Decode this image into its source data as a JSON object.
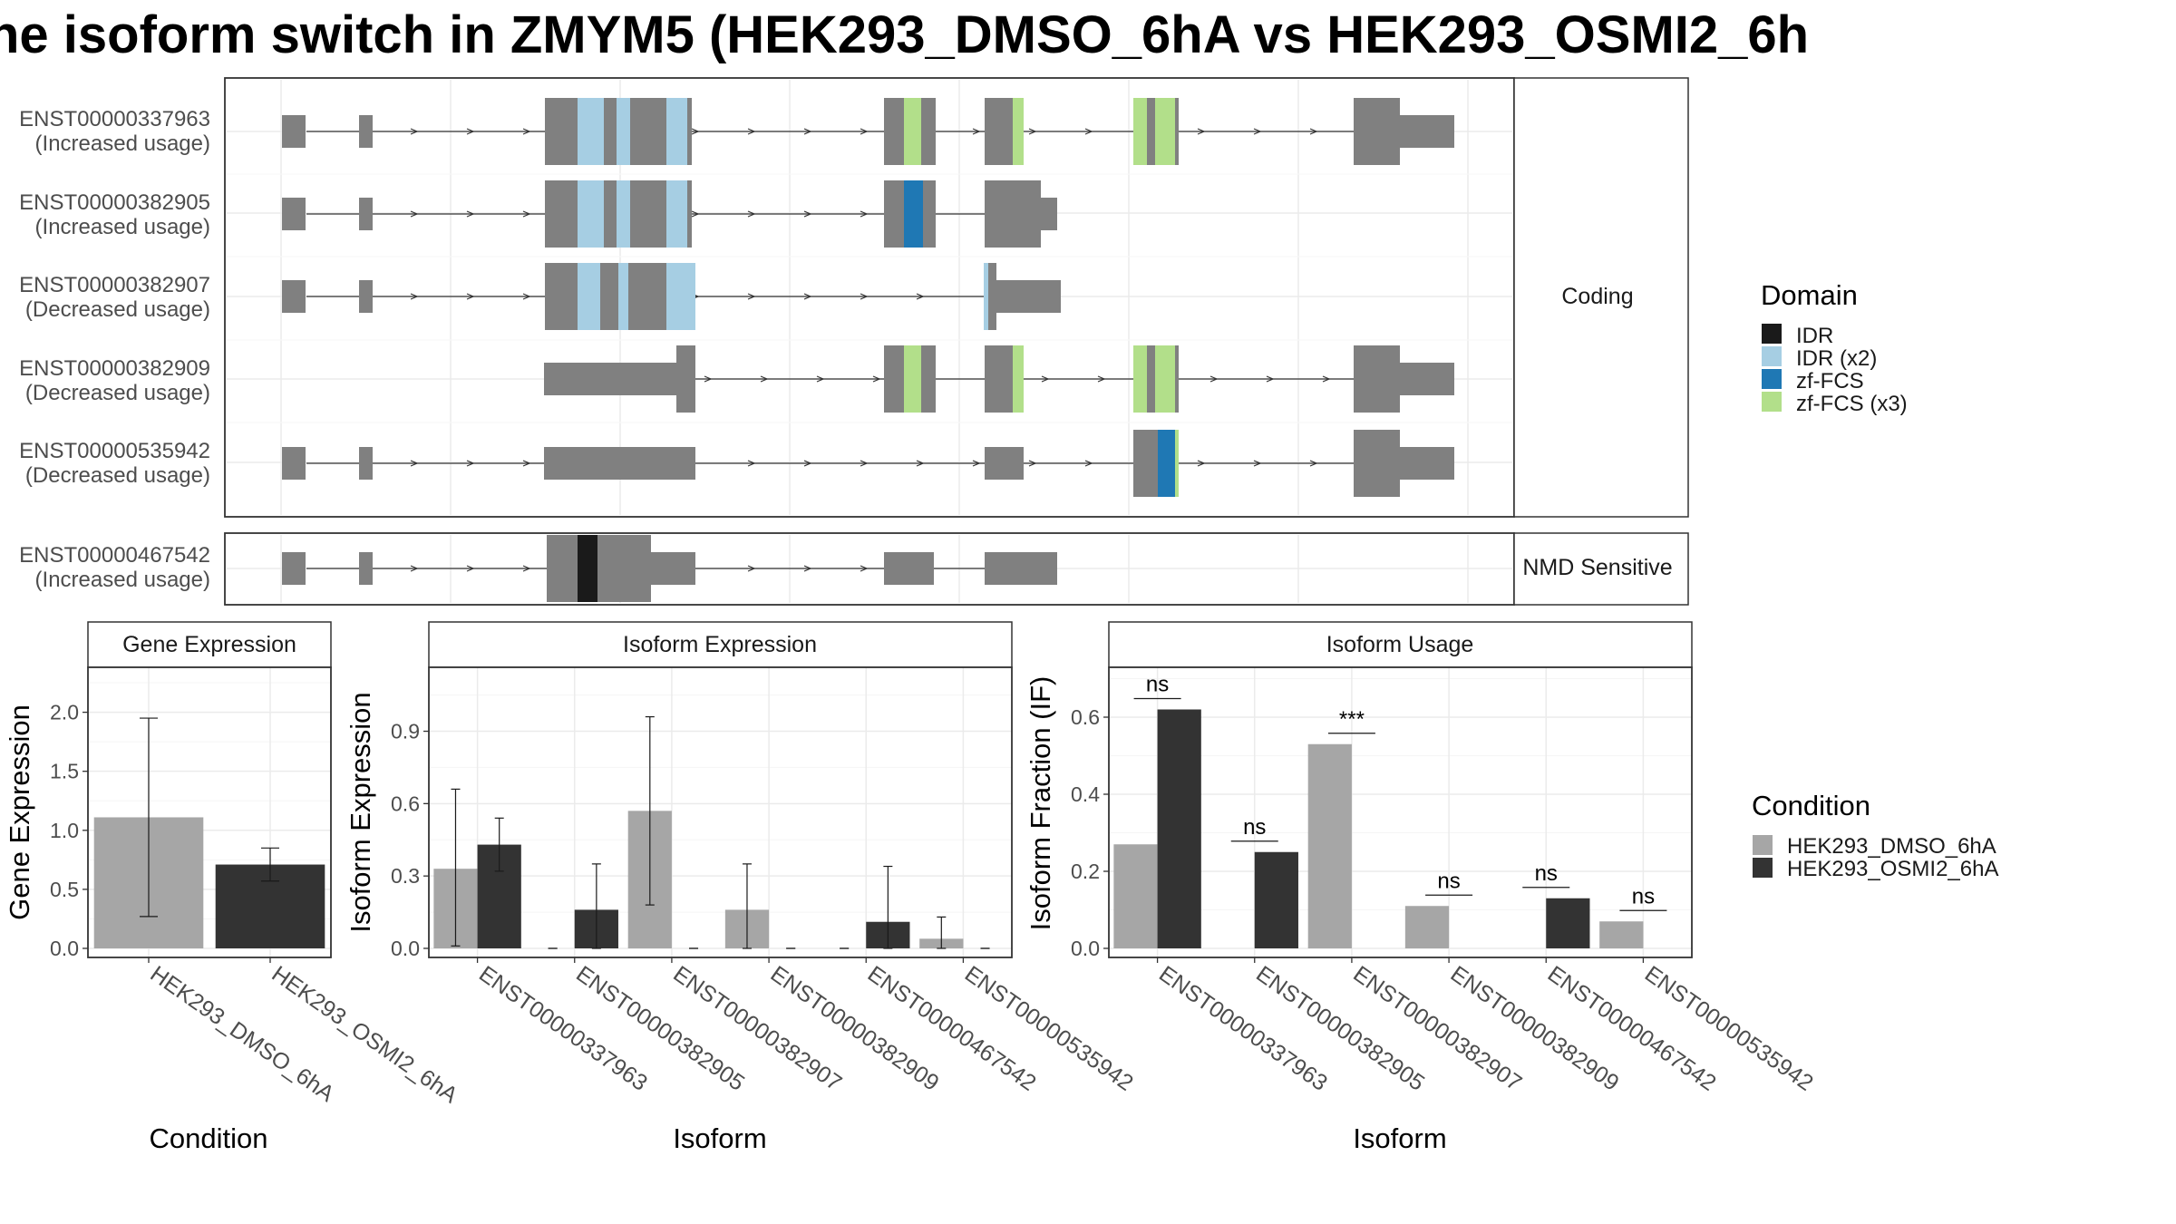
{
  "title": "ne isoform switch in ZMYM5 (HEK293_DMSO_6hA vs HEK293_OSMI2_6h",
  "colors": {
    "exon": "#808080",
    "IDR": "#1a1a1a",
    "IDR_x2": "#a6cee3",
    "zf_FCS": "#1f78b4",
    "zf_FCS_x3": "#b2df8a",
    "dmso": "#a6a6a6",
    "osmi": "#333333"
  },
  "transcripts": {
    "panels": [
      {
        "label": "Coding",
        "rows": [
          {
            "id": "ENST00000337963",
            "usage": "(Increased usage)"
          },
          {
            "id": "ENST00000382905",
            "usage": "(Increased usage)"
          },
          {
            "id": "ENST00000382907",
            "usage": "(Decreased usage)"
          },
          {
            "id": "ENST00000382909",
            "usage": "(Decreased usage)"
          },
          {
            "id": "ENST00000535942",
            "usage": "(Decreased usage)"
          }
        ]
      },
      {
        "label": "NMD Sensitive",
        "rows": [
          {
            "id": "ENST00000467542",
            "usage": "(Increased usage)"
          }
        ]
      }
    ]
  },
  "domain_legend": {
    "title": "Domain",
    "items": [
      {
        "label": "IDR",
        "color": "#1a1a1a"
      },
      {
        "label": "IDR (x2)",
        "color": "#a6cee3"
      },
      {
        "label": "zf-FCS",
        "color": "#1f78b4"
      },
      {
        "label": "zf-FCS (x3)",
        "color": "#b2df8a"
      }
    ]
  },
  "condition_legend": {
    "title": "Condition",
    "items": [
      {
        "label": "HEK293_DMSO_6hA",
        "color": "#a6a6a6"
      },
      {
        "label": "HEK293_OSMI2_6hA",
        "color": "#333333"
      }
    ]
  },
  "chart_data": [
    {
      "type": "bar",
      "title": "Gene Expression",
      "xlabel": "Condition",
      "ylabel": "Gene Expression",
      "ylim": [
        0,
        2.35
      ],
      "yticks": [
        "0.0",
        "0.5",
        "1.0",
        "1.5",
        "2.0"
      ],
      "categories": [
        "HEK293_DMSO_6hA",
        "HEK293_OSMI2_6hA"
      ],
      "values": [
        1.11,
        0.71
      ],
      "errors": [
        [
          0.27,
          1.95
        ],
        [
          0.57,
          0.85
        ]
      ]
    },
    {
      "type": "bar",
      "title": "Isoform Expression",
      "xlabel": "Isoform",
      "ylabel": "Isoform Expression",
      "ylim": [
        0,
        1.15
      ],
      "yticks": [
        "0.0",
        "0.3",
        "0.6",
        "0.9"
      ],
      "categories": [
        "ENST00000337963",
        "ENST00000382905",
        "ENST00000382907",
        "ENST00000382909",
        "ENST00000467542",
        "ENST00000535942"
      ],
      "series": [
        {
          "name": "HEK293_DMSO_6hA",
          "values": [
            0.33,
            0.0,
            0.57,
            0.16,
            0.0,
            0.04
          ],
          "errors": [
            [
              0.01,
              0.66
            ],
            [
              0,
              0
            ],
            [
              0.18,
              0.96
            ],
            [
              0.0,
              0.35
            ],
            [
              0,
              0
            ],
            [
              0.0,
              0.13
            ]
          ]
        },
        {
          "name": "HEK293_OSMI2_6hA",
          "values": [
            0.43,
            0.16,
            0.0,
            0.0,
            0.11,
            0.0
          ],
          "errors": [
            [
              0.32,
              0.54
            ],
            [
              0.0,
              0.35
            ],
            [
              0,
              0
            ],
            [
              0,
              0
            ],
            [
              0.0,
              0.34
            ],
            [
              0,
              0
            ]
          ]
        }
      ]
    },
    {
      "type": "bar",
      "title": "Isoform Usage",
      "xlabel": "Isoform",
      "ylabel": "Isoform Fraction (IF)",
      "ylim": [
        0,
        0.72
      ],
      "yticks": [
        "0.0",
        "0.2",
        "0.4",
        "0.6"
      ],
      "categories": [
        "ENST00000337963",
        "ENST00000382905",
        "ENST00000382907",
        "ENST00000382909",
        "ENST00000467542",
        "ENST00000535942"
      ],
      "series": [
        {
          "name": "HEK293_DMSO_6hA",
          "values": [
            0.27,
            0.0,
            0.53,
            0.11,
            0.0,
            0.07
          ]
        },
        {
          "name": "HEK293_OSMI2_6hA",
          "values": [
            0.62,
            0.25,
            0.0,
            0.0,
            0.13,
            0.0
          ]
        }
      ],
      "significance": [
        "ns",
        "ns",
        "***",
        "ns",
        "ns",
        "ns"
      ]
    }
  ]
}
